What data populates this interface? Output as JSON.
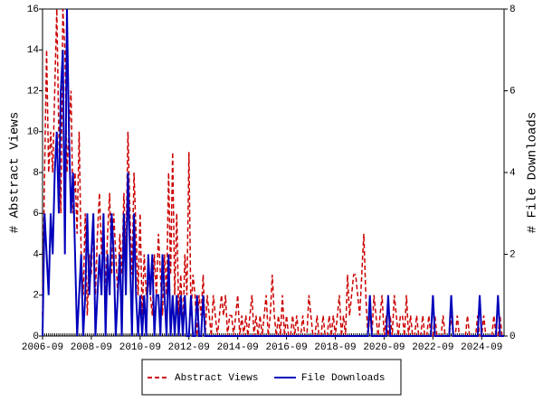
{
  "chart_data": {
    "type": "line",
    "x": [
      "2006-09",
      "2006-10",
      "2006-11",
      "2006-12",
      "2007-01",
      "2007-02",
      "2007-03",
      "2007-04",
      "2007-05",
      "2007-06",
      "2007-07",
      "2007-08",
      "2007-09",
      "2007-10",
      "2007-11",
      "2007-12",
      "2008-01",
      "2008-02",
      "2008-03",
      "2008-04",
      "2008-05",
      "2008-06",
      "2008-07",
      "2008-08",
      "2008-09",
      "2008-10",
      "2008-11",
      "2008-12",
      "2009-01",
      "2009-02",
      "2009-03",
      "2009-04",
      "2009-05",
      "2009-06",
      "2009-07",
      "2009-08",
      "2009-09",
      "2009-10",
      "2009-11",
      "2009-12",
      "2010-01",
      "2010-02",
      "2010-03",
      "2010-04",
      "2010-05",
      "2010-06",
      "2010-07",
      "2010-08",
      "2010-09",
      "2010-10",
      "2010-11",
      "2010-12",
      "2011-01",
      "2011-02",
      "2011-03",
      "2011-04",
      "2011-05",
      "2011-06",
      "2011-07",
      "2011-08",
      "2011-09",
      "2011-10",
      "2011-11",
      "2011-12",
      "2012-01",
      "2012-02",
      "2012-03",
      "2012-04",
      "2012-05",
      "2012-06",
      "2012-07",
      "2012-08",
      "2012-09",
      "2012-10",
      "2012-11",
      "2012-12",
      "2013-01",
      "2013-02",
      "2013-03",
      "2013-04",
      "2013-05",
      "2013-06",
      "2013-07",
      "2013-08",
      "2013-09",
      "2013-10",
      "2013-11",
      "2013-12",
      "2014-01",
      "2014-02",
      "2014-03",
      "2014-04",
      "2014-05",
      "2014-06",
      "2014-07",
      "2014-08",
      "2014-09",
      "2014-10",
      "2014-11",
      "2014-12",
      "2015-01",
      "2015-02",
      "2015-03",
      "2015-04",
      "2015-05",
      "2015-06",
      "2015-07",
      "2015-08",
      "2015-09",
      "2015-10",
      "2015-11",
      "2015-12",
      "2016-01",
      "2016-02",
      "2016-03",
      "2016-04",
      "2016-05",
      "2016-06",
      "2016-07",
      "2016-08",
      "2016-09",
      "2016-10",
      "2016-11",
      "2016-12",
      "2017-01",
      "2017-02",
      "2017-03",
      "2017-04",
      "2017-05",
      "2017-06",
      "2017-07",
      "2017-08",
      "2017-09",
      "2017-10",
      "2017-11",
      "2017-12",
      "2018-01",
      "2018-02",
      "2018-03",
      "2018-04",
      "2018-05",
      "2018-06",
      "2018-07",
      "2018-08",
      "2018-09",
      "2018-10",
      "2018-11",
      "2018-12",
      "2019-01",
      "2019-02",
      "2019-03",
      "2019-04",
      "2019-05",
      "2019-06",
      "2019-07",
      "2019-08",
      "2019-09",
      "2019-10",
      "2019-11",
      "2019-12",
      "2020-01",
      "2020-02",
      "2020-03",
      "2020-04",
      "2020-05",
      "2020-06",
      "2020-07",
      "2020-08",
      "2020-09",
      "2020-10",
      "2020-11",
      "2020-12",
      "2021-01",
      "2021-02",
      "2021-03",
      "2021-04",
      "2021-05",
      "2021-06",
      "2021-07",
      "2021-08",
      "2021-09",
      "2021-10",
      "2021-11",
      "2021-12",
      "2022-01",
      "2022-02",
      "2022-03",
      "2022-04",
      "2022-05",
      "2022-06",
      "2022-07",
      "2022-08",
      "2022-09",
      "2022-10",
      "2022-11",
      "2022-12",
      "2023-01",
      "2023-02",
      "2023-03",
      "2023-04",
      "2023-05",
      "2023-06",
      "2023-07",
      "2023-08",
      "2023-09",
      "2023-10",
      "2023-11",
      "2023-12",
      "2024-01",
      "2024-02",
      "2024-03",
      "2024-04",
      "2024-05",
      "2024-06",
      "2024-07",
      "2024-08",
      "2024-09",
      "2024-10",
      "2024-11",
      "2024-12",
      "2025-01",
      "2025-02",
      "2025-03",
      "2025-04",
      "2025-05",
      "2025-06",
      "2025-07",
      "2025-08"
    ],
    "xticks": [
      "2006-09",
      "2008-09",
      "2010-09",
      "2012-09",
      "2014-09",
      "2016-09",
      "2018-09",
      "2020-09",
      "2022-09",
      "2024-09"
    ],
    "ylabel": "# Abstract Views",
    "y2label": "# File Downloads",
    "ylim": [
      0,
      16
    ],
    "yticks": [
      0,
      2,
      4,
      6,
      8,
      10,
      12,
      14,
      16
    ],
    "y2lim": [
      0,
      8
    ],
    "y2ticks": [
      0,
      2,
      4,
      6,
      8
    ],
    "legend": "bottom",
    "series": [
      {
        "name": "Abstract Views",
        "color": "#cc0000",
        "dash": true,
        "axis": "y",
        "values": [
          1,
          8,
          14,
          8,
          10,
          8,
          12,
          16,
          10,
          6,
          16,
          14,
          8,
          10,
          12,
          6,
          8,
          5,
          10,
          4,
          2,
          6,
          1,
          4,
          3,
          6,
          2,
          5,
          7,
          4,
          6,
          2,
          5,
          7,
          3,
          6,
          4,
          2,
          5,
          3,
          7,
          4,
          10,
          6,
          3,
          8,
          5,
          2,
          6,
          1,
          4,
          2,
          3,
          2,
          1,
          4,
          2,
          5,
          3,
          1,
          4,
          2,
          8,
          3,
          9,
          2,
          6,
          1,
          3,
          0,
          4,
          2,
          9,
          1,
          3,
          2,
          0,
          2,
          1,
          3,
          0,
          2,
          1,
          0,
          2,
          1,
          0,
          1,
          2,
          1,
          2,
          0,
          1,
          1,
          0,
          1,
          2,
          0,
          1,
          0,
          1,
          0,
          1,
          2,
          0,
          1,
          0,
          1,
          0,
          1,
          2,
          0,
          1,
          3,
          1,
          0,
          1,
          0,
          2,
          0,
          1,
          0,
          0,
          1,
          0,
          1,
          0,
          0,
          1,
          0,
          0,
          2,
          1,
          0,
          0,
          1,
          0,
          0,
          1,
          0,
          0,
          1,
          0,
          1,
          0,
          1,
          2,
          0,
          1,
          0,
          3,
          1,
          2,
          3,
          3,
          2,
          1,
          3,
          5,
          2,
          0,
          1,
          0,
          2,
          1,
          0,
          1,
          2,
          0,
          1,
          0,
          1,
          0,
          2,
          1,
          0,
          1,
          1,
          0,
          2,
          0,
          1,
          0,
          0,
          1,
          0,
          0,
          1,
          0,
          0,
          1,
          0,
          0,
          1,
          0,
          0,
          0,
          1,
          0,
          0,
          0,
          1,
          0,
          0,
          1,
          0,
          0,
          0,
          0,
          1,
          0,
          0,
          0,
          0,
          1,
          0,
          0,
          1,
          0,
          0,
          0,
          0,
          1,
          0,
          0,
          1,
          0,
          0
        ]
      },
      {
        "name": "File Downloads",
        "color": "#0000bb",
        "dash": false,
        "axis": "y2",
        "values": [
          0,
          3,
          2,
          1,
          3,
          2,
          4,
          5,
          3,
          6,
          7,
          2,
          8,
          5,
          3,
          4,
          2,
          0,
          1,
          2,
          0,
          1,
          3,
          1,
          2,
          3,
          0,
          1,
          2,
          1,
          3,
          0,
          2,
          1,
          3,
          2,
          0,
          1,
          2,
          0,
          3,
          1,
          4,
          2,
          0,
          3,
          1,
          0,
          1,
          0,
          1,
          0,
          2,
          1,
          2,
          0,
          1,
          1,
          0,
          2,
          1,
          0,
          2,
          0,
          1,
          0,
          1,
          0,
          1,
          0,
          1,
          0,
          0,
          1,
          0,
          0,
          1,
          0,
          0,
          1,
          0,
          0,
          0,
          0,
          0,
          0,
          0,
          0,
          0,
          0,
          0,
          0,
          0,
          0,
          0,
          0,
          0,
          0,
          0,
          0,
          0,
          0,
          0,
          0,
          0,
          0,
          0,
          0,
          0,
          0,
          0,
          0,
          0,
          0,
          0,
          0,
          0,
          0,
          0,
          0,
          0,
          0,
          0,
          0,
          0,
          0,
          0,
          0,
          0,
          0,
          0,
          0,
          0,
          0,
          0,
          0,
          0,
          0,
          0,
          0,
          0,
          0,
          0,
          0,
          0,
          0,
          0,
          0,
          0,
          0,
          0,
          0,
          0,
          0,
          0,
          0,
          0,
          0,
          0,
          0,
          0,
          1,
          0,
          0,
          0,
          0,
          0,
          0,
          0,
          0,
          1,
          0,
          0,
          0,
          0,
          0,
          0,
          0,
          0,
          0,
          0,
          0,
          0,
          0,
          0,
          0,
          0,
          0,
          0,
          0,
          0,
          0,
          1,
          0,
          0,
          0,
          0,
          0,
          0,
          0,
          0,
          1,
          0,
          0,
          0,
          0,
          0,
          0,
          0,
          0,
          0,
          0,
          0,
          0,
          0,
          1,
          0,
          0,
          0,
          0,
          0,
          0,
          0,
          0,
          1,
          0,
          0,
          0
        ]
      }
    ]
  }
}
